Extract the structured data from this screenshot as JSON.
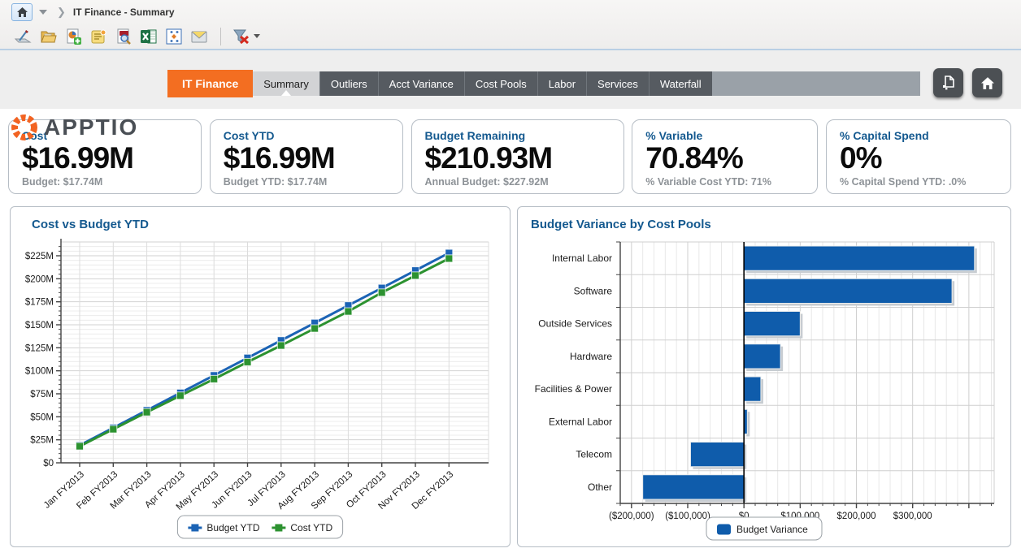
{
  "toolbar": {
    "breadcrumb": "IT Finance - Summary",
    "icons": [
      "signature",
      "open-folder",
      "new-report",
      "notes",
      "pdf-preview",
      "export-excel",
      "pivot-table",
      "email",
      "clear-filter"
    ]
  },
  "header": {
    "logo_text": "APPTIO",
    "primary_tab": "IT Finance",
    "tabs": [
      {
        "label": "Summary",
        "selected": true
      },
      {
        "label": "Outliers",
        "selected": false
      },
      {
        "label": "Acct Variance",
        "selected": false
      },
      {
        "label": "Cost Pools",
        "selected": false
      },
      {
        "label": "Labor",
        "selected": false
      },
      {
        "label": "Services",
        "selected": false
      },
      {
        "label": "Waterfall",
        "selected": false
      }
    ]
  },
  "kpis": [
    {
      "title": "Cost",
      "value": "$16.99M",
      "subtitle": "Budget: $17.74M"
    },
    {
      "title": "Cost YTD",
      "value": "$16.99M",
      "subtitle": "Budget YTD: $17.74M"
    },
    {
      "title": "Budget Remaining",
      "value": "$210.93M",
      "subtitle": "Annual Budget: $227.92M"
    },
    {
      "title": "% Variable",
      "value": "70.84%",
      "subtitle": "% Variable Cost YTD: 71%"
    },
    {
      "title": "% Capital Spend",
      "value": "0%",
      "subtitle": "% Capital Spend YTD: .0%"
    }
  ],
  "colors": {
    "accent_orange": "#f36e21",
    "kpi_title_blue": "#14598f",
    "budget_line_blue": "#1b63b5",
    "cost_line_green": "#2c9230",
    "bar_blue": "#0f5cab",
    "tabstrip_gray": "#9aa1a8",
    "tab_dark_gray": "#565b61"
  },
  "chart_data": [
    {
      "type": "line",
      "title": "Cost vs Budget YTD",
      "x": [
        "Jan FY2013",
        "Feb FY2013",
        "Mar FY2013",
        "Apr FY2013",
        "May FY2013",
        "Jun FY2013",
        "Jul FY2013",
        "Aug FY2013",
        "Sep FY2013",
        "Oct FY2013",
        "Nov FY2013",
        "Dec FY2013"
      ],
      "series": [
        {
          "name": "Budget YTD",
          "color": "#1b63b5",
          "values": [
            19,
            38,
            57,
            76,
            95,
            114,
            133,
            152,
            171,
            190,
            209,
            228
          ]
        },
        {
          "name": "Cost YTD",
          "color": "#2c9230",
          "values": [
            18,
            36.5,
            55,
            73,
            91,
            109.5,
            127.5,
            146,
            164.5,
            185,
            203.5,
            222
          ]
        }
      ],
      "unit": "millions USD",
      "ylim": [
        0,
        240
      ],
      "yticks": [
        {
          "value": 0,
          "label": "$0"
        },
        {
          "value": 25,
          "label": "$25M"
        },
        {
          "value": 50,
          "label": "$50M"
        },
        {
          "value": 75,
          "label": "$75M"
        },
        {
          "value": 100,
          "label": "$100M"
        },
        {
          "value": 125,
          "label": "$125M"
        },
        {
          "value": 150,
          "label": "$150M"
        },
        {
          "value": 175,
          "label": "$175M"
        },
        {
          "value": 200,
          "label": "$200M"
        },
        {
          "value": 225,
          "label": "$225M"
        }
      ],
      "y_minor_step": 5,
      "grid": true,
      "legend_position": "bottom"
    },
    {
      "type": "bar",
      "title": "Budget Variance by Cost Pools",
      "orientation": "horizontal",
      "categories": [
        "Internal Labor",
        "Software",
        "Outside Services",
        "Hardware",
        "Facilities & Power",
        "External Labor",
        "Telecom",
        "Other"
      ],
      "values": [
        410000,
        370000,
        100000,
        65000,
        30000,
        6000,
        -95000,
        -180000
      ],
      "series_name": "Budget Variance",
      "color": "#0f5cab",
      "xlim": [
        -220000,
        445000
      ],
      "xticks": [
        {
          "value": -200000,
          "label": "($200,000)"
        },
        {
          "value": -100000,
          "label": "($100,000)"
        },
        {
          "value": 0,
          "label": "$0"
        },
        {
          "value": 100000,
          "label": "$100,000"
        },
        {
          "value": 200000,
          "label": "$200,000"
        },
        {
          "value": 300000,
          "label": "$300,000"
        },
        {
          "value": 400000,
          "label": ""
        }
      ],
      "x_minor_step": 20000,
      "grid": true,
      "legend_position": "bottom"
    }
  ]
}
